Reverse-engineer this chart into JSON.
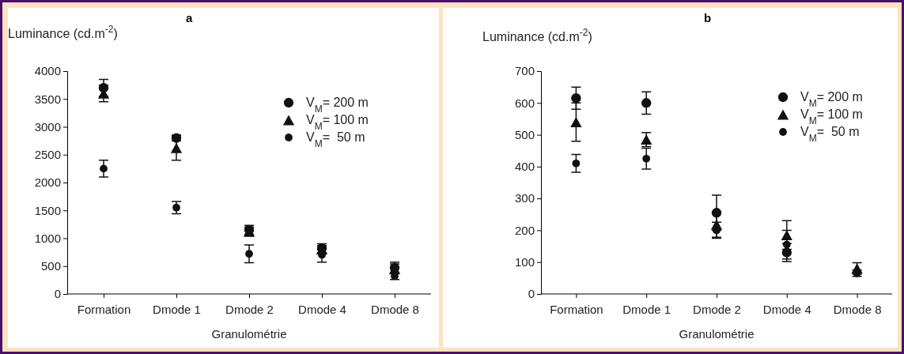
{
  "chart_data": [
    {
      "type": "scatter",
      "title": "a",
      "ylabel": "Luminance (cd.m$^{-2}$)",
      "xlabel": "Granulométrie",
      "categories": [
        "Formation",
        "Dmode 1",
        "Dmode 2",
        "Dmode 4",
        "Dmode 8"
      ],
      "ylim": [
        0,
        4000
      ],
      "yticks": [
        0,
        500,
        1000,
        1500,
        2000,
        2500,
        3000,
        3500,
        4000
      ],
      "legend": "top right",
      "series": [
        {
          "name": "V$_{M}$= 200 m",
          "color": "#111111",
          "marker": "circle",
          "values": [
            3700,
            2800,
            1150,
            820,
            470
          ],
          "errors": [
            150,
            50,
            80,
            80,
            100
          ]
        },
        {
          "name": "V$_{M}$= 100 m",
          "color": "#111111",
          "marker": "triangle",
          "values": [
            3600,
            2620,
            1120,
            800,
            450
          ],
          "errors": [
            150,
            220,
            80,
            70,
            90
          ]
        },
        {
          "name": "V$_{M}$=  50 m",
          "color": "#111111",
          "marker": "circle",
          "values": [
            2250,
            1550,
            720,
            700,
            320
          ],
          "errors": [
            150,
            110,
            160,
            130,
            60
          ]
        }
      ]
    },
    {
      "type": "scatter",
      "title": "b",
      "ylabel": "Luminance (cd.m$^{-2}$)",
      "xlabel": "Granulométrie",
      "categories": [
        "Formation",
        "Dmode 1",
        "Dmode 2",
        "Dmode 4",
        "Dmode 8"
      ],
      "ylim": [
        0,
        700
      ],
      "yticks": [
        0,
        100,
        200,
        300,
        400,
        500,
        600,
        700
      ],
      "legend": "top right",
      "series": [
        {
          "name": "V$_{M}$= 200 m",
          "color": "#111111",
          "marker": "circle",
          "values": [
            615,
            600,
            255,
            130,
            null
          ],
          "errors": [
            35,
            35,
            55,
            28,
            null
          ]
        },
        {
          "name": "V$_{M}$= 100 m",
          "color": "#111111",
          "marker": "triangle",
          "values": [
            540,
            485,
            218,
            185,
            80
          ],
          "errors": [
            60,
            22,
            40,
            45,
            18
          ]
        },
        {
          "name": "V$_{M}$=  50 m",
          "color": "#111111",
          "marker": "circle",
          "values": [
            410,
            425,
            200,
            155,
            65
          ],
          "errors": [
            28,
            33,
            25,
            45,
            10
          ]
        }
      ]
    }
  ]
}
